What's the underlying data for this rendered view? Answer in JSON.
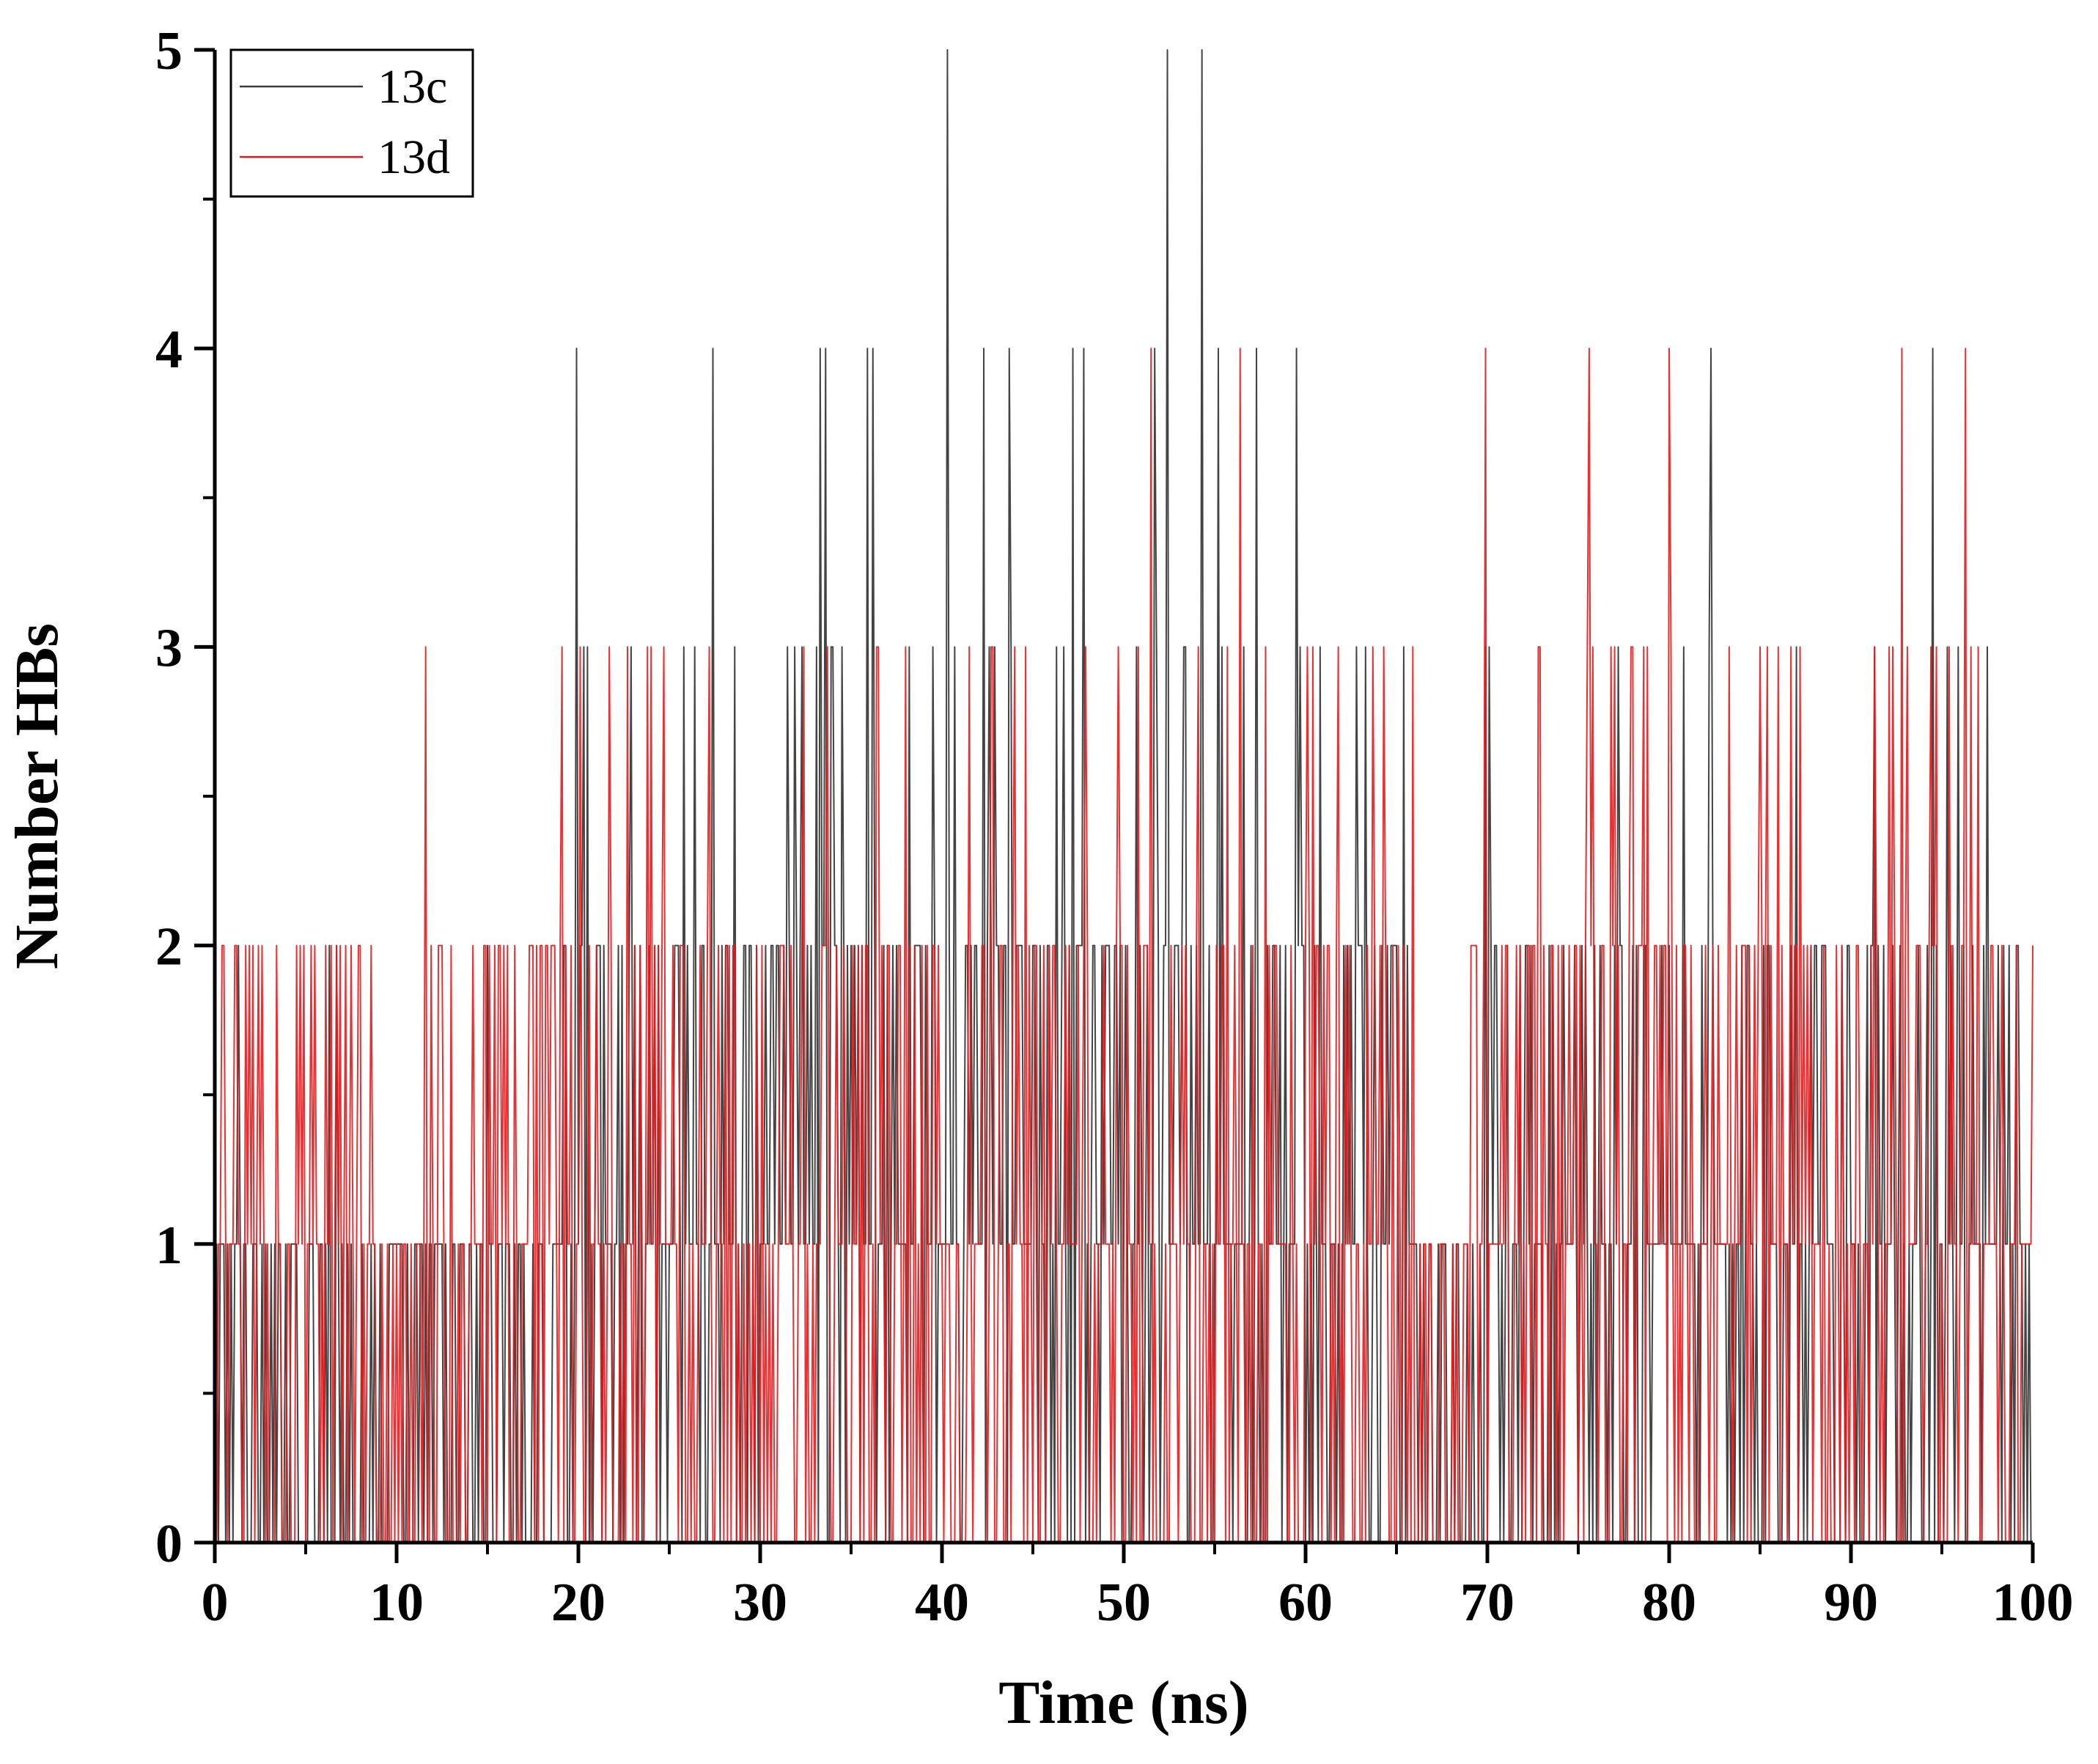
{
  "chart_data": {
    "type": "line",
    "xlabel": "Time (ns)",
    "ylabel": "Number HBs",
    "xlim": [
      0,
      100
    ],
    "ylim": [
      0,
      5
    ],
    "xticks": [
      0,
      10,
      20,
      30,
      40,
      50,
      60,
      70,
      80,
      90,
      100
    ],
    "yticks": [
      0,
      1,
      2,
      3,
      4,
      5
    ],
    "grid": false,
    "legend_position": "top-left",
    "series": [
      {
        "name": "13c",
        "color": "#3a3a3a",
        "sampling": "integer hydrogen-bond count sampled every 0.1 ns over 0-100 ns (1001 frames)",
        "typical_range": [
          0,
          2
        ],
        "peaks_at_4_ns": [
          19.9,
          27.4,
          33.3,
          33.6,
          35.9,
          36.2,
          42.3,
          43.7,
          47.2,
          47.8,
          51.7,
          55.2,
          57.3,
          59.5,
          82.3,
          94.5
        ],
        "peaks_at_5_ns": [
          40.3,
          52.4,
          54.3
        ]
      },
      {
        "name": "13d",
        "color": "#e8191c",
        "sampling": "integer hydrogen-bond count sampled every 0.1 ns over 0-100 ns (1001 frames)",
        "typical_range": [
          0,
          3
        ],
        "peaks_at_4_ns": [
          51.5,
          56.4,
          69.9,
          75.6,
          80.0,
          92.8,
          96.3
        ],
        "peaks_at_5_ns": []
      }
    ]
  }
}
